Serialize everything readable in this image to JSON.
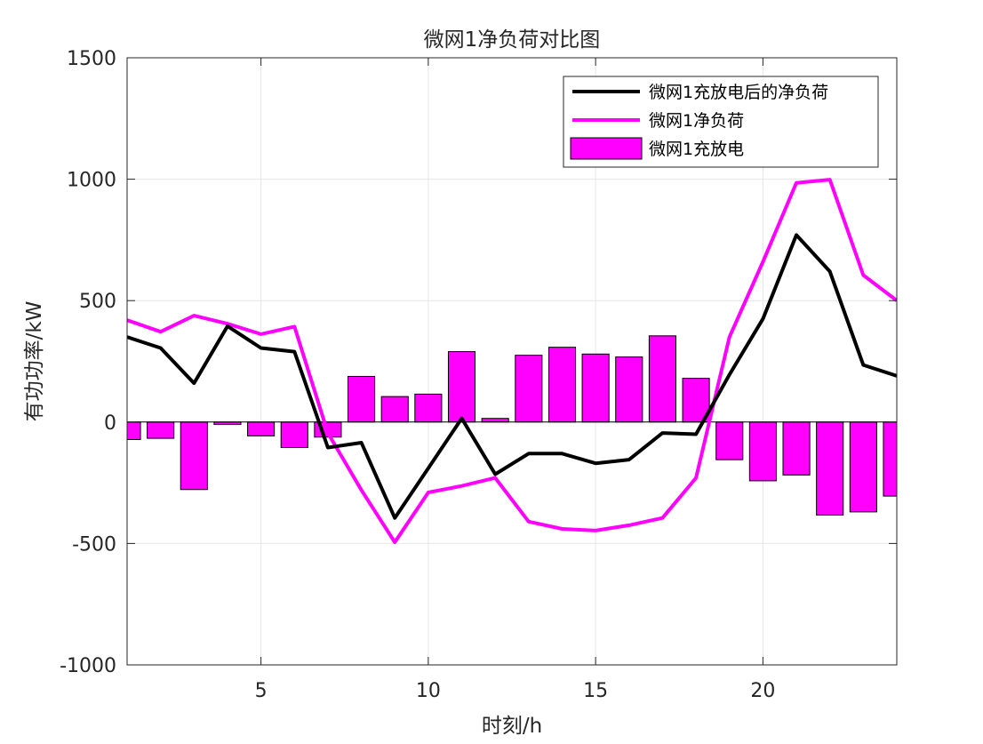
{
  "chart_data": {
    "type": "bar+line",
    "title": "微网1净负荷对比图",
    "xlabel": "时刻/h",
    "ylabel": "有功功率/kW",
    "xlim": [
      1,
      24
    ],
    "ylim": [
      -1000,
      1500
    ],
    "xticks": [
      5,
      10,
      15,
      20
    ],
    "yticks": [
      -1000,
      -500,
      0,
      500,
      1000,
      1500
    ],
    "grid": true,
    "legend_position": "top-right",
    "x": [
      1,
      2,
      3,
      4,
      5,
      6,
      7,
      8,
      9,
      10,
      11,
      12,
      13,
      14,
      15,
      16,
      17,
      18,
      19,
      20,
      21,
      22,
      23,
      24
    ],
    "series": [
      {
        "name": "微网1充放电后的净负荷",
        "type": "line",
        "color": "#000000",
        "values": [
          350,
          305,
          160,
          395,
          305,
          290,
          -105,
          -85,
          -395,
          -190,
          15,
          -215,
          -130,
          -130,
          -170,
          -155,
          -45,
          -50,
          195,
          425,
          770,
          620,
          235,
          190
        ]
      },
      {
        "name": "微网1净负荷",
        "type": "line",
        "color": "#ff00ff",
        "values": [
          420,
          372,
          438,
          405,
          362,
          393,
          -45,
          -280,
          -495,
          -290,
          -263,
          -230,
          -410,
          -440,
          -447,
          -425,
          -395,
          -230,
          350,
          660,
          985,
          998,
          605,
          500
        ]
      },
      {
        "name": "微网1充放电",
        "type": "bar",
        "color": "#ff00ff",
        "edge_color": "#000000",
        "values": [
          -72,
          -67,
          -278,
          -10,
          -57,
          -105,
          -62,
          188,
          105,
          115,
          290,
          15,
          275,
          308,
          280,
          268,
          355,
          180,
          -155,
          -242,
          -218,
          -383,
          -370,
          -305
        ]
      }
    ]
  }
}
